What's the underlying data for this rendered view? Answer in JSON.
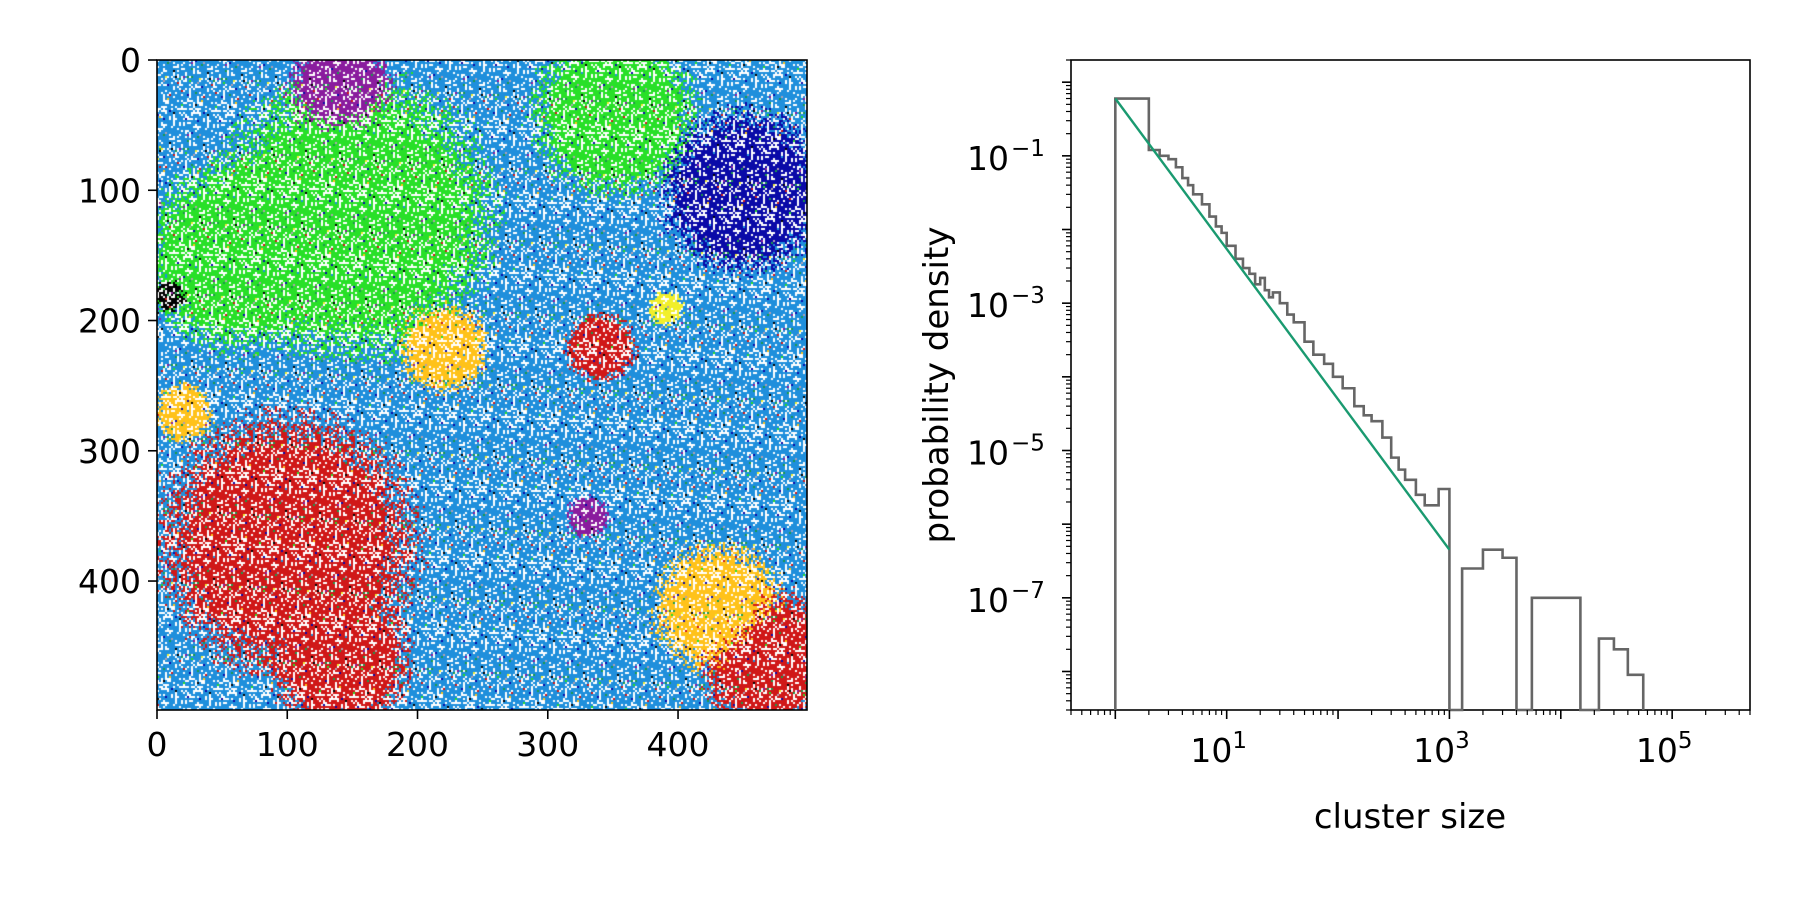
{
  "chart_data": [
    {
      "type": "heatmap",
      "description_kind": "cluster lattice image",
      "xlim": [
        0,
        499
      ],
      "ylim": [
        499,
        0
      ],
      "xticks": [
        0,
        100,
        200,
        300,
        400
      ],
      "yticks": [
        0,
        100,
        200,
        300,
        400
      ],
      "xtick_labels": [
        "0",
        "100",
        "200",
        "300",
        "400"
      ],
      "ytick_labels": [
        "0",
        "100",
        "200",
        "300",
        "400"
      ],
      "palette": [
        "#1f8fdc",
        "#28e028",
        "#d01818",
        "#ffc21a",
        "#0a0aa8",
        "#8a1c9e",
        "#f2ef2a",
        "#1a9a4a",
        "#000000",
        "#b0a0b0"
      ],
      "regions": [
        {
          "color": "#1f8fdc",
          "x": 300,
          "y": 250,
          "r": 500
        },
        {
          "color": "#28e028",
          "x": 150,
          "y": 120,
          "r": 120
        },
        {
          "color": "#28e028",
          "x": 350,
          "y": 40,
          "r": 70
        },
        {
          "color": "#28e028",
          "x": 60,
          "y": 150,
          "r": 80
        },
        {
          "color": "#d01818",
          "x": 100,
          "y": 370,
          "r": 110
        },
        {
          "color": "#d01818",
          "x": 140,
          "y": 460,
          "r": 60
        },
        {
          "color": "#d01818",
          "x": 470,
          "y": 460,
          "r": 60
        },
        {
          "color": "#d01818",
          "x": 340,
          "y": 220,
          "r": 30
        },
        {
          "color": "#ffc21a",
          "x": 430,
          "y": 420,
          "r": 55
        },
        {
          "color": "#ffc21a",
          "x": 220,
          "y": 220,
          "r": 38
        },
        {
          "color": "#ffc21a",
          "x": 20,
          "y": 270,
          "r": 25
        },
        {
          "color": "#0a0aa8",
          "x": 450,
          "y": 100,
          "r": 70
        },
        {
          "color": "#8a1c9e",
          "x": 140,
          "y": 20,
          "r": 45
        },
        {
          "color": "#8a1c9e",
          "x": 330,
          "y": 350,
          "r": 18
        },
        {
          "color": "#f2ef2a",
          "x": 390,
          "y": 190,
          "r": 15
        },
        {
          "color": "#000000",
          "x": 10,
          "y": 180,
          "r": 14
        }
      ]
    },
    {
      "type": "line",
      "scale": "log-log",
      "xlabel": "cluster size",
      "ylabel": "probability density",
      "xlim": [
        0.4,
        500000
      ],
      "ylim": [
        3e-09,
        2
      ],
      "xticks": [
        10,
        1000,
        100000
      ],
      "xtick_base": [
        "10",
        "10",
        "10"
      ],
      "xtick_exp": [
        "1",
        "3",
        "5"
      ],
      "yticks": [
        0.1,
        0.001,
        1e-05,
        1e-07
      ],
      "ytick_base": [
        "10",
        "10",
        "10",
        "10"
      ],
      "ytick_exp": [
        "−1",
        "−3",
        "−5",
        "−7"
      ],
      "series": [
        {
          "kind": "histogram-step",
          "color": "#666666",
          "edges": [
            1,
            2,
            2.5,
            3,
            3.5,
            4,
            4.5,
            5,
            6,
            7,
            8,
            9,
            10,
            12,
            14,
            16,
            18,
            20,
            22,
            24,
            26,
            30,
            35,
            40,
            50,
            60,
            75,
            90,
            110,
            140,
            170,
            200,
            250,
            300,
            350,
            400,
            500,
            600,
            800,
            1000,
            1300,
            2000,
            3000,
            4000,
            5500,
            15000,
            22000,
            30000,
            40000,
            55000
          ],
          "values": [
            0.6,
            0.12,
            0.1,
            0.09,
            0.07,
            0.05,
            0.04,
            0.03,
            0.022,
            0.015,
            0.011,
            0.009,
            0.006,
            0.004,
            0.003,
            0.0025,
            0.0018,
            0.0022,
            0.0015,
            0.0012,
            0.0014,
            0.001,
            0.0007,
            0.00055,
            0.0003,
            0.0002,
            0.00015,
            0.0001,
            7e-05,
            4e-05,
            3e-05,
            2.5e-05,
            1.5e-05,
            8e-06,
            5.5e-06,
            4e-06,
            2.5e-06,
            1.8e-06,
            3e-06,
            0,
            2.5e-07,
            4.5e-07,
            3.5e-07,
            0,
            1e-07,
            0,
            2.8e-08,
            2e-08,
            9e-09,
            0
          ]
        },
        {
          "kind": "power-law-fit",
          "color": "#1a9a70",
          "x": [
            1,
            1000
          ],
          "y": [
            0.6,
            4.5e-07
          ]
        }
      ]
    }
  ]
}
